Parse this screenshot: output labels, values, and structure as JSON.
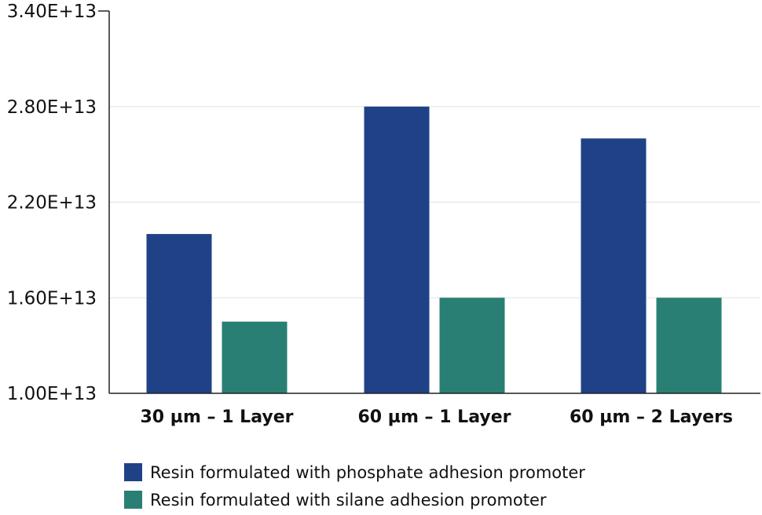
{
  "chart_data": {
    "type": "bar",
    "categories": [
      "30 µm – 1 Layer",
      "60 µm – 1 Layer",
      "60 µm – 2 Layers"
    ],
    "series": [
      {
        "name": "Resin formulated with phosphate adhesion promoter",
        "values": [
          20000000000000.0,
          28000000000000.0,
          26000000000000.0
        ],
        "color": "#1f4287"
      },
      {
        "name": "Resin formulated with silane adhesion promoter",
        "values": [
          14500000000000.0,
          16000000000000.0,
          16000000000000.0
        ],
        "color": "#2a7f74"
      }
    ],
    "ylim": [
      10000000000000.0,
      34000000000000.0
    ],
    "y_ticks": [
      10000000000000.0,
      16000000000000.0,
      22000000000000.0,
      28000000000000.0,
      34000000000000.0
    ],
    "y_tick_labels": [
      "1.00E+13",
      "1.60E+13",
      "2.20E+13",
      "2.80E+13",
      "3.40E+13"
    ],
    "grid": true,
    "legend_position": "bottom-left"
  }
}
